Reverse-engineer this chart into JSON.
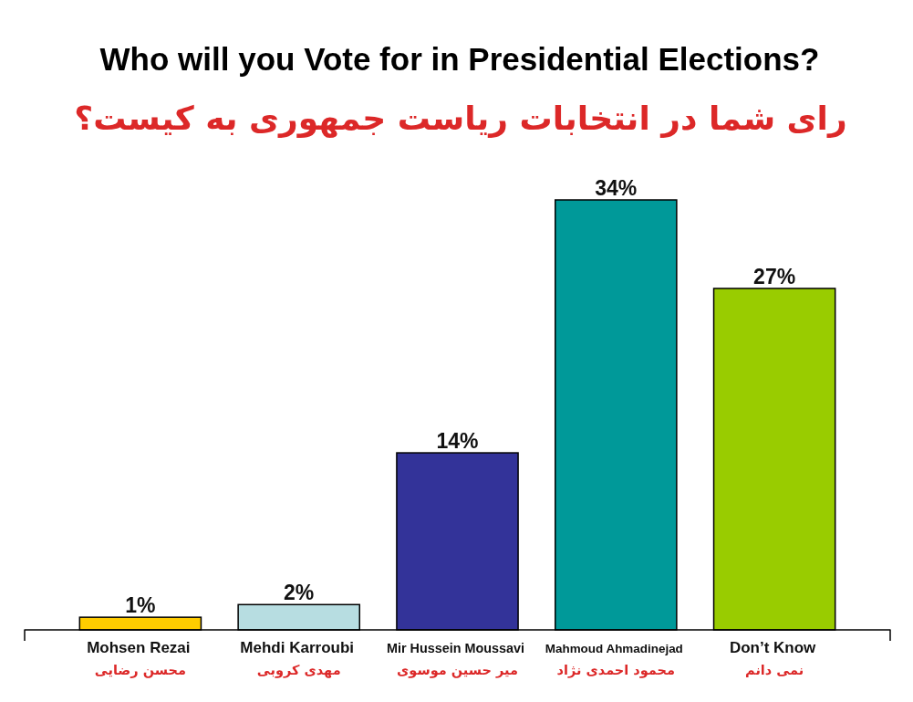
{
  "chart_data": {
    "type": "bar",
    "title": "Who will you Vote for in Presidential Elections?",
    "subtitle": "رای شما در انتخابات ریاست جمهوری به کیست؟",
    "categories": [
      "Mohsen Rezai\nمحسن رضایی",
      "Mehdi Karroubi\nمهدی کروبی",
      "Mir Hussein Moussavi\nمیر حسین موسوی",
      "Mahmoud Ahmadinejad\nمحمود احمدی نژاد",
      "Don’t Know\nنمی دانم"
    ],
    "values": [
      1,
      2,
      14,
      34,
      27
    ],
    "value_labels": [
      "1%",
      "2%",
      "14%",
      "34%",
      "27%"
    ],
    "colors": [
      "#ffcc00",
      "#b7dde1",
      "#333399",
      "#009999",
      "#99cc00"
    ]
  }
}
